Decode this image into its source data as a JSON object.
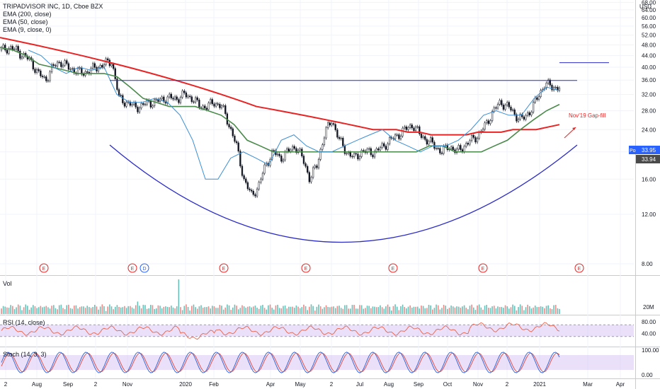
{
  "header": {
    "symbol": "TRIPADVISOR INC, 1D, Cboe BZX",
    "studies": [
      "EMA (200, close)",
      "EMA (50, close)",
      "EMA (9, close, 0)"
    ],
    "currency": "USD"
  },
  "price_tags": {
    "post_label": "Post",
    "post_value": "33.95",
    "last_value": "33.94"
  },
  "annotation": {
    "text": "Nov'19 Gap-fill"
  },
  "earnings_markers": [
    "E",
    "E",
    "D",
    "E",
    "E",
    "E",
    "E",
    "E"
  ],
  "panes": {
    "volume_label": "Vol",
    "rsi_label": "RSI (14, close)",
    "stoch_label": "Stoch (14, 3, 3)"
  },
  "colors": {
    "ema200": "#e82424",
    "ema50": "#4a8a4a",
    "ema9": "#3a8fd6",
    "up": "#26a69a",
    "down": "#ef5350",
    "candle": "#131722",
    "curve": "#2c2cc8",
    "resistance": "#2c2cc8",
    "rsi": "#e8624a",
    "stoch_k": "#2c5fd6",
    "stoch_d": "#e0453a",
    "band": "#d9c6f5",
    "post_tag": "#2962ff",
    "last_tag": "#4a4a4a"
  },
  "chart_data": [
    {
      "type": "line",
      "title": "TRIPADVISOR INC, 1D, Cboe BZX",
      "ylim": [
        8,
        68
      ],
      "y_scale": "log",
      "yticks": [
        8.0,
        12.0,
        16.0,
        20.0,
        24.0,
        28.0,
        32.0,
        36.0,
        40.0,
        44.0,
        48.0,
        52.0,
        56.0,
        60.0,
        64.0,
        68.0
      ],
      "xticks": [
        "2",
        "Aug",
        "Sep",
        "2",
        "Nov",
        "2020",
        "Feb",
        "Apr",
        "May",
        "2",
        "Jul",
        "Aug",
        "Sep",
        "Oct",
        "Nov",
        "2",
        "2021",
        "Mar",
        "Apr"
      ],
      "price_close": [
        46,
        47,
        46,
        44,
        42,
        38,
        36,
        40,
        42,
        40,
        39,
        38,
        39,
        40,
        41,
        42,
        31,
        30,
        29,
        29,
        30,
        30,
        31,
        31,
        31,
        32,
        31,
        29,
        29,
        30,
        29,
        25,
        21,
        16,
        14,
        15,
        18,
        20,
        19,
        20,
        21,
        19,
        16,
        18,
        23,
        26,
        22,
        20,
        19,
        20,
        20,
        20,
        21,
        22,
        23,
        24,
        25,
        23,
        22,
        21,
        20,
        21,
        20,
        21,
        22,
        23,
        25,
        28,
        30,
        29,
        27,
        26,
        28,
        31,
        35,
        34,
        33.95
      ],
      "series": [
        {
          "name": "EMA (200, close)",
          "values": [
            51,
            50,
            49,
            48,
            47,
            46,
            45,
            44,
            43,
            42,
            41,
            40,
            39,
            38,
            37,
            36,
            35,
            34,
            33,
            32,
            31,
            30,
            29,
            28.5,
            28,
            27.5,
            27,
            26.5,
            26,
            25.5,
            25,
            24.5,
            24,
            24,
            24,
            23.5,
            23.5,
            23,
            23,
            23,
            23,
            23.5,
            23.5,
            23.5,
            24,
            24,
            24,
            24.5,
            25
          ]
        },
        {
          "name": "EMA (50, close)",
          "values": [
            47,
            46,
            44,
            41,
            40,
            39,
            38,
            38,
            38,
            37,
            34,
            31,
            30,
            29,
            29,
            29,
            28,
            27,
            25,
            22,
            21,
            20,
            20,
            20,
            20,
            20,
            20,
            20,
            20,
            20,
            20,
            20,
            20,
            21,
            21,
            20,
            20,
            20,
            21,
            22,
            24,
            26,
            28,
            29.5
          ]
        },
        {
          "name": "EMA (9, close, 0)",
          "values": [
            46,
            44,
            40,
            38,
            40,
            39,
            40,
            32,
            30,
            30,
            31,
            30,
            27,
            22,
            16,
            16,
            19,
            20,
            19,
            18,
            22,
            23,
            21,
            20,
            20,
            21,
            22,
            23,
            24,
            22,
            21,
            20,
            21,
            21,
            22,
            24,
            27,
            28,
            27,
            27,
            31,
            34,
            33
          ]
        }
      ],
      "levels": [
        {
          "name": "resistance",
          "value": 35.9
        },
        {
          "name": "Nov'19 Gap-fill",
          "value": 41.5
        }
      ]
    },
    {
      "type": "bar",
      "title": "Vol",
      "yticks": [
        "20M"
      ],
      "spike_values_m": [
        9,
        6,
        25
      ]
    },
    {
      "type": "line",
      "title": "RSI (14, close)",
      "ylim": [
        0,
        100
      ],
      "yticks": [
        80.0,
        40.0
      ],
      "band": [
        30,
        70
      ]
    },
    {
      "type": "line",
      "title": "Stoch (14, 3, 3)",
      "ylim": [
        0,
        100
      ],
      "yticks": [
        100.0,
        0.0
      ],
      "band": [
        20,
        80
      ]
    }
  ]
}
